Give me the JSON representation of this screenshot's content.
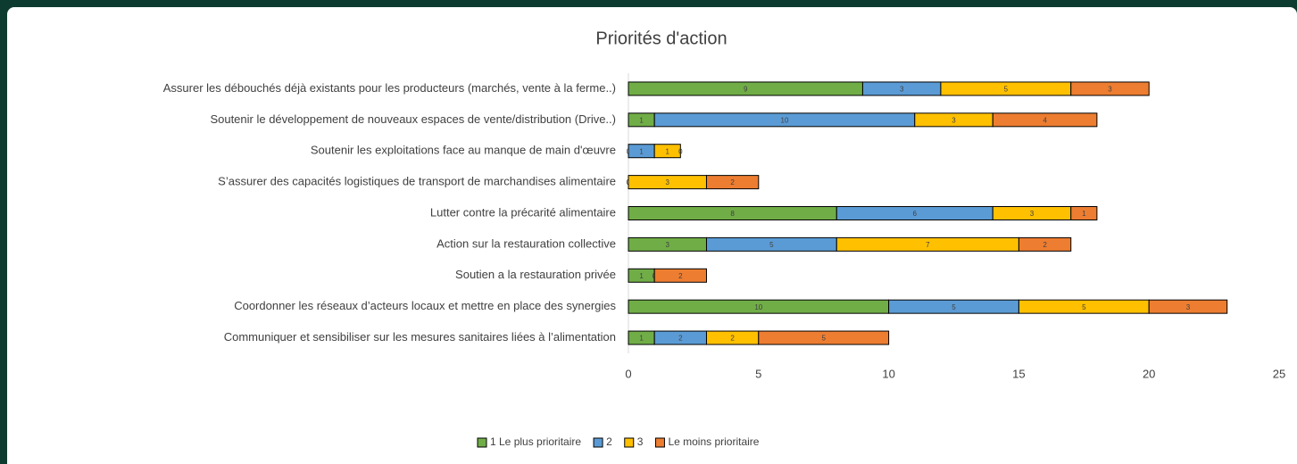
{
  "chart_data": {
    "type": "bar",
    "orientation": "horizontal",
    "stacked": true,
    "title": "Priorités d'action",
    "categories": [
      "Assurer les débouchés déjà existants pour les producteurs (marchés, vente à la ferme..)",
      "Soutenir le développement de nouveaux espaces de vente/distribution (Drive..)",
      "Soutenir les exploitations face au manque de main d'œuvre",
      "S’assurer des capacités logistiques de transport de marchandises alimentaire",
      "Lutter contre la précarité alimentaire",
      "Action sur la restauration collective",
      "Soutien a la restauration privée",
      "Coordonner les réseaux d’acteurs locaux et mettre en place des synergies",
      "Communiquer et sensibiliser sur les mesures sanitaires liées à l’alimentation"
    ],
    "series": [
      {
        "name": "1 Le plus prioritaire",
        "color": "#70ad47",
        "values": [
          9,
          1,
          0,
          0,
          8,
          3,
          1,
          10,
          1
        ]
      },
      {
        "name": "2",
        "color": "#5b9bd5",
        "values": [
          3,
          10,
          1,
          0,
          6,
          5,
          0,
          5,
          2
        ]
      },
      {
        "name": "3",
        "color": "#ffc000",
        "values": [
          5,
          3,
          1,
          3,
          3,
          7,
          0,
          5,
          2
        ]
      },
      {
        "name": "Le moins prioritaire",
        "color": "#ed7d31",
        "values": [
          3,
          4,
          0,
          2,
          1,
          2,
          2,
          3,
          5
        ]
      }
    ],
    "xlim": [
      0,
      25
    ],
    "xticks": [
      0,
      5,
      10,
      15,
      20,
      25
    ],
    "legend": "bottom"
  }
}
